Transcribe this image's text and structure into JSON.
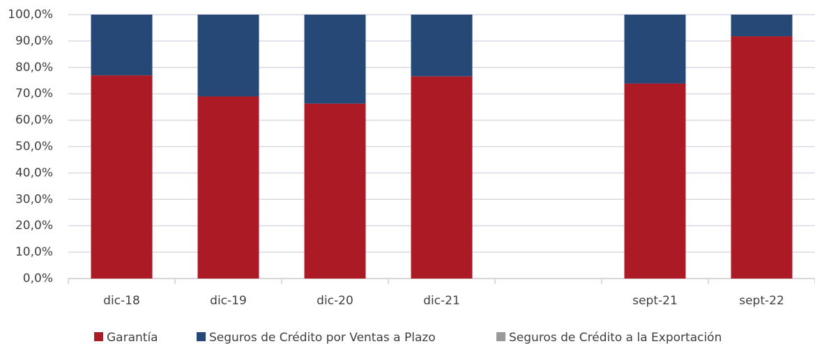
{
  "chart_data": {
    "type": "stacked_bar",
    "categories": [
      "dic-18",
      "dic-19",
      "dic-20",
      "dic-21",
      null,
      "sept-21",
      "sept-22"
    ],
    "series": [
      {
        "name": "Garantía",
        "color": "#ac1a25",
        "values": [
          77,
          69,
          66.3,
          76.6,
          null,
          73.9,
          91.8
        ]
      },
      {
        "name": "Seguros de Crédito por Ventas a Plazo",
        "color": "#264876",
        "values": [
          23,
          31,
          33.7,
          23.4,
          null,
          26.1,
          8.2
        ]
      },
      {
        "name": "Seguros de Crédito a la Exportación",
        "color": "#999999",
        "values": [
          0,
          0,
          0,
          0,
          null,
          0,
          0
        ]
      }
    ],
    "ylim": [
      0,
      100
    ],
    "yticks": [
      {
        "value": 0,
        "label": "0,0%"
      },
      {
        "value": 10,
        "label": "10,0%"
      },
      {
        "value": 20,
        "label": "20,0%"
      },
      {
        "value": 30,
        "label": "30,0%"
      },
      {
        "value": 40,
        "label": "40,0%"
      },
      {
        "value": 50,
        "label": "50,0%"
      },
      {
        "value": 60,
        "label": "60,0%"
      },
      {
        "value": 70,
        "label": "70,0%"
      },
      {
        "value": 80,
        "label": "80,0%"
      },
      {
        "value": 90,
        "label": "90,0%"
      },
      {
        "value": 100,
        "label": "100,0%"
      }
    ],
    "grid": true,
    "legend": "bottom"
  }
}
